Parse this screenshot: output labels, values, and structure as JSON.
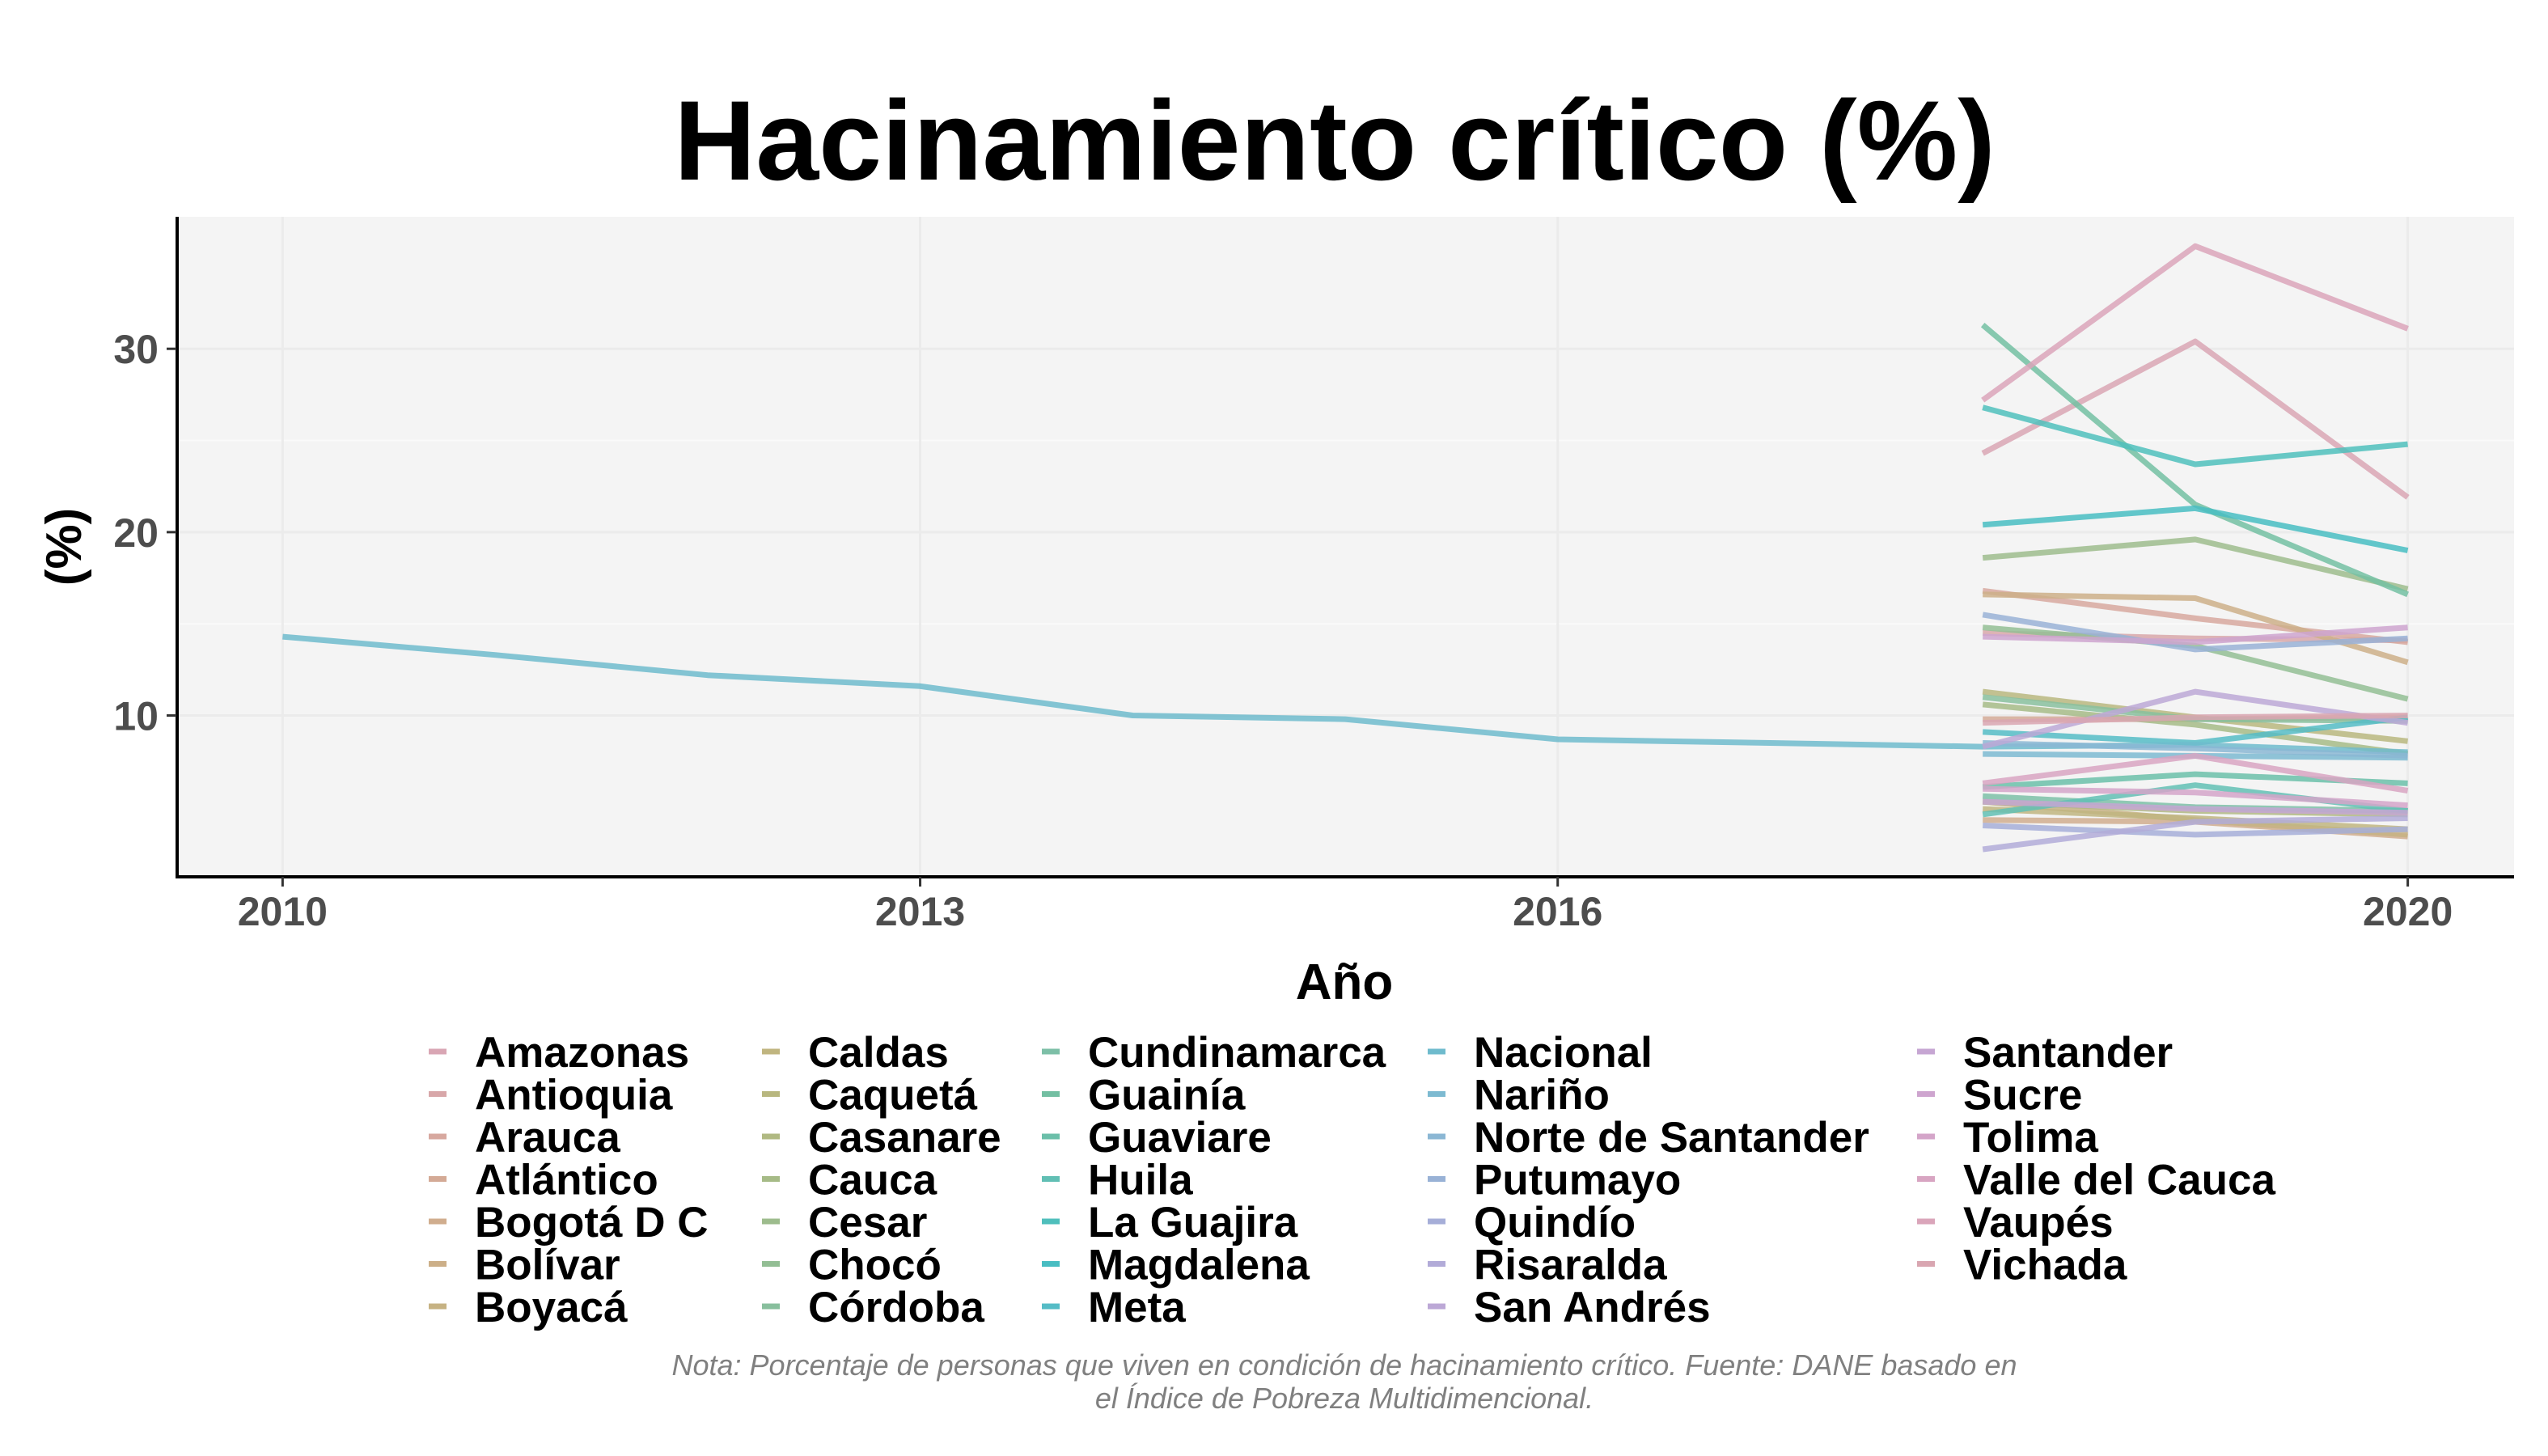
{
  "chart_data": {
    "type": "line",
    "title": "Hacinamiento crítico (%)",
    "xlabel": "Año",
    "ylabel": "(%)",
    "xlim": [
      2009.5,
      2020.5
    ],
    "ylim": [
      1.2,
      37.2
    ],
    "x_ticks": [
      2010,
      2013,
      2016,
      2020
    ],
    "y_ticks": [
      10,
      20,
      30
    ],
    "grid": true,
    "legend_position": "bottom",
    "note_lines": [
      "Nota: Porcentaje de personas que viven en condición de hacinamiento crítico. Fuente: DANE basado en",
      "el Índice de Pobreza Multidimencional."
    ],
    "series": [
      {
        "name": "Amazonas",
        "color": "#D9A6B4",
        "x": [
          2018,
          2019,
          2020
        ],
        "y": [
          24.3,
          30.4,
          21.9
        ]
      },
      {
        "name": "Antioquia",
        "color": "#D8A7A9",
        "x": [
          2018,
          2019,
          2020
        ],
        "y": [
          14.5,
          14.2,
          14.1
        ]
      },
      {
        "name": "Arauca",
        "color": "#D7A89F",
        "x": [
          2018,
          2019,
          2020
        ],
        "y": [
          16.8,
          15.3,
          14.0
        ]
      },
      {
        "name": "Atlántico",
        "color": "#D4AA96",
        "x": [
          2018,
          2019,
          2020
        ],
        "y": [
          9.8,
          9.8,
          9.9
        ]
      },
      {
        "name": "Bogotá D C",
        "color": "#D0AD8E",
        "x": [
          2018,
          2019,
          2020
        ],
        "y": [
          4.3,
          4.2,
          3.4
        ]
      },
      {
        "name": "Bolívar",
        "color": "#CCAF88",
        "x": [
          2018,
          2019,
          2020
        ],
        "y": [
          16.6,
          16.4,
          12.9
        ]
      },
      {
        "name": "Boyacá",
        "color": "#C6B283",
        "x": [
          2018,
          2019,
          2020
        ],
        "y": [
          5.3,
          4.3,
          3.5
        ]
      },
      {
        "name": "Caldas",
        "color": "#C0B580",
        "x": [
          2018,
          2019,
          2020
        ],
        "y": [
          4.9,
          4.4,
          3.8
        ]
      },
      {
        "name": "Caquetá",
        "color": "#B8B77F",
        "x": [
          2018,
          2019,
          2020
        ],
        "y": [
          11.3,
          9.9,
          8.6
        ]
      },
      {
        "name": "Casanare",
        "color": "#B0B982",
        "x": [
          2018,
          2019,
          2020
        ],
        "y": [
          5.3,
          4.8,
          4.6
        ]
      },
      {
        "name": "Cauca",
        "color": "#A6BB87",
        "x": [
          2018,
          2019,
          2020
        ],
        "y": [
          10.6,
          9.5,
          7.9
        ]
      },
      {
        "name": "Cesar",
        "color": "#9DBC8D",
        "x": [
          2018,
          2019,
          2020
        ],
        "y": [
          18.6,
          19.6,
          16.9
        ]
      },
      {
        "name": "Chocó",
        "color": "#93BE94",
        "x": [
          2018,
          2019,
          2020
        ],
        "y": [
          14.8,
          13.8,
          10.9
        ]
      },
      {
        "name": "Córdoba",
        "color": "#88BF9D",
        "x": [
          2018,
          2019,
          2020
        ],
        "y": [
          11.0,
          9.8,
          9.7
        ]
      },
      {
        "name": "Cundinamarca",
        "color": "#7DBFA7",
        "x": [
          2018,
          2019,
          2020
        ],
        "y": [
          5.6,
          5.0,
          4.8
        ]
      },
      {
        "name": "Guainía",
        "color": "#73BFA2",
        "x": [
          2018,
          2019,
          2020
        ],
        "y": [
          31.3,
          21.5,
          16.6
        ]
      },
      {
        "name": "Guaviare",
        "color": "#6BBFA9",
        "x": [
          2018,
          2019,
          2020
        ],
        "y": [
          6.1,
          6.8,
          6.3
        ]
      },
      {
        "name": "Huila",
        "color": "#61BFB4",
        "x": [
          2018,
          2019,
          2020
        ],
        "y": [
          4.6,
          6.2,
          4.8
        ]
      },
      {
        "name": "La Guajira",
        "color": "#4FBFBC",
        "x": [
          2018,
          2019,
          2020
        ],
        "y": [
          26.8,
          23.7,
          24.8
        ]
      },
      {
        "name": "Magdalena",
        "color": "#48BDC2",
        "x": [
          2018,
          2019,
          2020
        ],
        "y": [
          20.4,
          21.3,
          19.0
        ]
      },
      {
        "name": "Meta",
        "color": "#55BCC6",
        "x": [
          2018,
          2019,
          2020
        ],
        "y": [
          9.1,
          8.5,
          9.9
        ]
      },
      {
        "name": "Nacional",
        "color": "#6FBBCD",
        "x": [
          2010,
          2011,
          2012,
          2013,
          2014,
          2015,
          2016,
          2017,
          2018,
          2019,
          2020
        ],
        "y": [
          14.3,
          13.3,
          12.2,
          11.6,
          10.0,
          9.8,
          8.7,
          8.5,
          8.3,
          8.4,
          8.0
        ]
      },
      {
        "name": "Nariño",
        "color": "#7DBAD1",
        "x": [
          2018,
          2019,
          2020
        ],
        "y": [
          7.9,
          7.8,
          7.7
        ]
      },
      {
        "name": "Norte de Santander",
        "color": "#8BB7D4",
        "x": [
          2018,
          2019,
          2020
        ],
        "y": [
          8.5,
          8.2,
          7.8
        ]
      },
      {
        "name": "Putumayo",
        "color": "#99B2D6",
        "x": [
          2018,
          2019,
          2020
        ],
        "y": [
          15.5,
          13.6,
          14.2
        ]
      },
      {
        "name": "Quindío",
        "color": "#A6AED8",
        "x": [
          2018,
          2019,
          2020
        ],
        "y": [
          4.0,
          3.5,
          3.8
        ]
      },
      {
        "name": "Risaralda",
        "color": "#B2ABD8",
        "x": [
          2018,
          2019,
          2020
        ],
        "y": [
          2.7,
          4.2,
          4.4
        ]
      },
      {
        "name": "San Andrés",
        "color": "#BCA8D6",
        "x": [
          2018,
          2019,
          2020
        ],
        "y": [
          8.3,
          11.3,
          9.6
        ]
      },
      {
        "name": "Santander",
        "color": "#C6A6D3",
        "x": [
          2018,
          2019,
          2020
        ],
        "y": [
          5.3,
          4.9,
          4.7
        ]
      },
      {
        "name": "Sucre",
        "color": "#CEA5CF",
        "x": [
          2018,
          2019,
          2020
        ],
        "y": [
          14.3,
          14.0,
          14.8
        ]
      },
      {
        "name": "Tolima",
        "color": "#D4A5C9",
        "x": [
          2018,
          2019,
          2020
        ],
        "y": [
          6.0,
          5.8,
          5.1
        ]
      },
      {
        "name": "Valle del Cauca",
        "color": "#D8A5C2",
        "x": [
          2018,
          2019,
          2020
        ],
        "y": [
          6.3,
          7.8,
          5.9
        ]
      },
      {
        "name": "Vaupés",
        "color": "#DAA5BA",
        "x": [
          2018,
          2019,
          2020
        ],
        "y": [
          27.2,
          35.6,
          31.1
        ]
      },
      {
        "name": "Vichada",
        "color": "#D9A6B1",
        "x": [
          2018,
          2019,
          2020
        ],
        "y": [
          9.6,
          9.9,
          10.0
        ]
      }
    ]
  }
}
